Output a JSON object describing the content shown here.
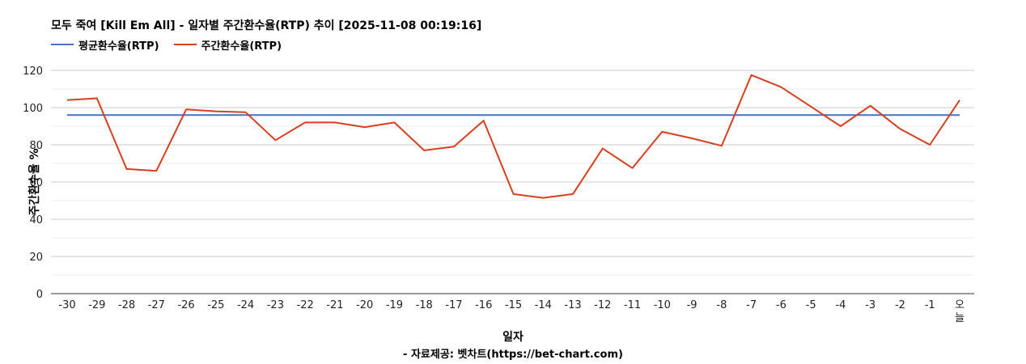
{
  "title": "모두 죽여 [Kill Em All] - 일자별 주간환수율(RTP) 추이 [2025-11-08 00:19:16]",
  "source": "- 자료제공: 벳차트(https://bet-chart.com)",
  "chart_data": {
    "type": "line",
    "title": "모두 죽여 [Kill Em All] - 일자별 주간환수율(RTP) 추이 [2025-11-08 00:19:16]",
    "xlabel": "일자",
    "ylabel": "주간환수율 %",
    "ylim": [
      0,
      120
    ],
    "yticks": [
      0,
      20,
      40,
      60,
      80,
      100,
      120
    ],
    "grid": true,
    "legend": "top-left",
    "categories": [
      "-30",
      "-29",
      "-28",
      "-27",
      "-26",
      "-25",
      "-24",
      "-23",
      "-22",
      "-21",
      "-20",
      "-19",
      "-18",
      "-17",
      "-16",
      "-15",
      "-14",
      "-13",
      "-12",
      "-11",
      "-10",
      "-9",
      "-8",
      "-7",
      "-6",
      "-5",
      "-4",
      "-3",
      "-2",
      "-1",
      "오늘"
    ],
    "series": [
      {
        "name": "평균환수율(RTP)",
        "color": "#4472c4",
        "values": [
          96,
          96,
          96,
          96,
          96,
          96,
          96,
          96,
          96,
          96,
          96,
          96,
          96,
          96,
          96,
          96,
          96,
          96,
          96,
          96,
          96,
          96,
          96,
          96,
          96,
          96,
          96,
          96,
          96,
          96,
          96
        ]
      },
      {
        "name": "주간환수율(RTP)",
        "color": "#d63f1f",
        "values": [
          104,
          105,
          67,
          66,
          99,
          98,
          97.5,
          82.5,
          92,
          92,
          89.5,
          92,
          77,
          79,
          93,
          53.5,
          51.5,
          53.5,
          78,
          67.5,
          87,
          83.5,
          79.5,
          117.5,
          111,
          100.5,
          90,
          101,
          88.5,
          80,
          104
        ]
      }
    ]
  }
}
